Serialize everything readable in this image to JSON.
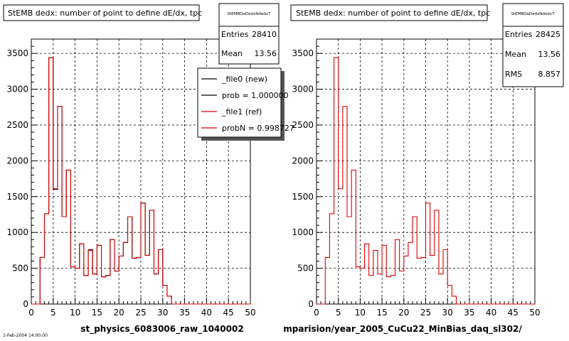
{
  "chart_data": [
    {
      "type": "line",
      "title": "StEMB dedx: number of point to define dE/dx, tpc",
      "xlabel": "st_physics_6083006_raw_1040002",
      "xlim": [
        0,
        50
      ],
      "ylim": [
        0,
        3700
      ],
      "grid": true,
      "x_ticks": [
        "0",
        "5",
        "10",
        "15",
        "20",
        "25",
        "30",
        "35",
        "40",
        "45",
        "50"
      ],
      "y_ticks": [
        "0",
        "500",
        "1000",
        "1500",
        "2000",
        "2500",
        "3000",
        "3500"
      ],
      "stats": {
        "name": "StEMBQaDedxNdedx7",
        "rows": [
          {
            "label": "Entries",
            "value": "28410"
          },
          {
            "label": "Mean",
            "value": "13.56"
          }
        ]
      },
      "legend_placement": "top-right",
      "legend": [
        {
          "label": "_file0 (new)",
          "color": "#000000"
        },
        {
          "label": "prob = 1.000000",
          "color": "#000000"
        },
        {
          "label": "_file1 (ref)",
          "color": "#dd0000"
        },
        {
          "label": "probN = 0.998727",
          "color": "#dd0000"
        }
      ],
      "bin_width": 1,
      "series": [
        {
          "name": "_file0 (new)",
          "color": "#000000",
          "values": [
            0,
            0,
            650,
            1260,
            3440,
            1600,
            2760,
            1220,
            1870,
            520,
            500,
            840,
            400,
            760,
            420,
            820,
            380,
            400,
            900,
            460,
            670,
            860,
            1220,
            640,
            650,
            1410,
            680,
            1310,
            420,
            760,
            260,
            110,
            0,
            0,
            0,
            0,
            0,
            0,
            0,
            0,
            0,
            0,
            0,
            0,
            0,
            0,
            0,
            0,
            0,
            0
          ]
        },
        {
          "name": "_file1 (ref)",
          "color": "#dd0000",
          "values": [
            0,
            0,
            650,
            1260,
            3440,
            1610,
            2760,
            1220,
            1870,
            520,
            500,
            840,
            400,
            750,
            420,
            820,
            380,
            400,
            900,
            460,
            670,
            860,
            1220,
            640,
            650,
            1410,
            680,
            1310,
            420,
            760,
            260,
            110,
            0,
            0,
            0,
            0,
            0,
            0,
            0,
            0,
            0,
            0,
            0,
            0,
            0,
            0,
            0,
            0,
            0,
            0
          ]
        }
      ]
    },
    {
      "type": "line",
      "title": "StEMB dedx: number of point to define dE/dx, tpc",
      "xlabel": "mparision/year_2005_CuCu22_MinBias_daq_sl302/",
      "xlim": [
        0,
        50
      ],
      "ylim": [
        0,
        3700
      ],
      "grid": true,
      "x_ticks": [
        "0",
        "5",
        "10",
        "15",
        "20",
        "25",
        "30",
        "35",
        "40",
        "45",
        "50"
      ],
      "y_ticks": [
        "0",
        "500",
        "1000",
        "1500",
        "2000",
        "2500",
        "3000",
        "3500"
      ],
      "stats": {
        "name": "StEMBQaDedxNdedx7",
        "rows": [
          {
            "label": "Entries",
            "value": "28425"
          },
          {
            "label": "Mean",
            "value": "13.56"
          },
          {
            "label": "RMS",
            "value": "8.857"
          }
        ]
      },
      "bin_width": 1,
      "series": [
        {
          "color": "#dd0000",
          "values": [
            0,
            0,
            650,
            1260,
            3440,
            1610,
            2760,
            1220,
            1870,
            520,
            500,
            840,
            400,
            750,
            420,
            820,
            380,
            400,
            900,
            460,
            670,
            860,
            1220,
            640,
            650,
            1410,
            680,
            1310,
            420,
            760,
            260,
            110,
            0,
            0,
            0,
            0,
            0,
            0,
            0,
            0,
            0,
            0,
            0,
            0,
            0,
            0,
            0,
            0,
            0,
            0
          ]
        }
      ]
    }
  ],
  "footer_text": "1-Feb-2004 14:00:00"
}
